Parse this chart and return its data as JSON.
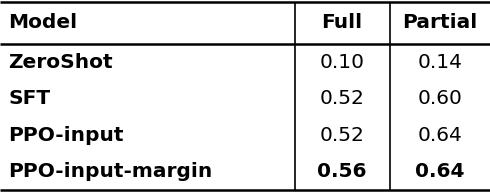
{
  "columns": [
    "Model",
    "Full",
    "Partial"
  ],
  "rows": [
    [
      "ZeroShot",
      "0.10",
      "0.14"
    ],
    [
      "SFT",
      "0.52",
      "0.60"
    ],
    [
      "PPO-input",
      "0.52",
      "0.64"
    ],
    [
      "PPO-input-margin",
      "0.56",
      "0.64"
    ]
  ],
  "bold_last_row_values": true,
  "background_color": "#ffffff",
  "text_color": "#000000",
  "font_size": 14.5
}
